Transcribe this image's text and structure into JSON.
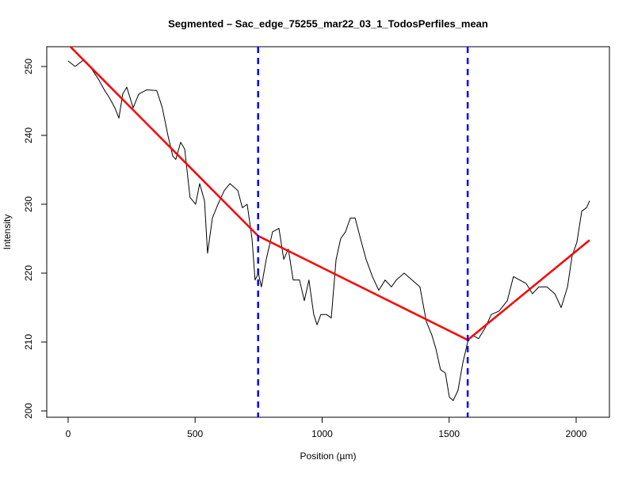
{
  "chart_data": {
    "type": "line",
    "title": "Segmented – Sac_edge_75255_mar22_03_1_TodosPerfiles_mean",
    "x_label": "Position (µm)",
    "y_label": "Intensity",
    "xlim": [
      -84,
      2131
    ],
    "ylim": [
      199.08,
      252.87
    ],
    "xticks": [
      0,
      500,
      1000,
      1500,
      2000
    ],
    "yticks": [
      200,
      210,
      220,
      230,
      240,
      250
    ],
    "series": [
      {
        "color": "#000000",
        "width": 1,
        "x": [
          0,
          28,
          59,
          90,
          122,
          144,
          162,
          184,
          200,
          215,
          231,
          256,
          278,
          309,
          349,
          371,
          393,
          412,
          424,
          443,
          459,
          480,
          502,
          518,
          537,
          549,
          568,
          590,
          615,
          637,
          668,
          686,
          705,
          724,
          736,
          749,
          761,
          780,
          805,
          830,
          849,
          867,
          886,
          911,
          930,
          948,
          967,
          980,
          995,
          1017,
          1036,
          1055,
          1073,
          1092,
          1111,
          1130,
          1151,
          1173,
          1198,
          1223,
          1248,
          1273,
          1292,
          1323,
          1354,
          1385,
          1410,
          1432,
          1448,
          1466,
          1485,
          1501,
          1516,
          1535,
          1554,
          1573,
          1591,
          1616,
          1641,
          1666,
          1697,
          1729,
          1753,
          1778,
          1803,
          1828,
          1853,
          1885,
          1916,
          1941,
          1966,
          1984,
          2003,
          2022,
          2041,
          2053
        ],
        "values": [
          250.8,
          250,
          250.9,
          249.8,
          248,
          246.5,
          245.5,
          244,
          242.5,
          246,
          247,
          244,
          246,
          246.6,
          246.5,
          244,
          240,
          237,
          236.5,
          239,
          238,
          231,
          230,
          233,
          230.5,
          222.9,
          228,
          230,
          232,
          233,
          232,
          229.5,
          230,
          225,
          219,
          220,
          218,
          222,
          226,
          226.5,
          222,
          223.5,
          219,
          219,
          216,
          219,
          214,
          212.5,
          214,
          214,
          213.5,
          222,
          225,
          226,
          228,
          228,
          225,
          222,
          219.5,
          217.5,
          219,
          218,
          219,
          220,
          219,
          218,
          213,
          211,
          209,
          206,
          205.5,
          202,
          201.5,
          203,
          207,
          210,
          211,
          210.5,
          212,
          214,
          214.5,
          216,
          219.5,
          219,
          218.5,
          217,
          218,
          218,
          217,
          215,
          218,
          222.5,
          224.5,
          229,
          229.5,
          230.5
        ]
      },
      {
        "color": "#ff0000",
        "width": 2.5,
        "x": [
          0,
          748,
          1573,
          2053
        ],
        "values": [
          253.2,
          225.4,
          210.3,
          224.8
        ]
      }
    ],
    "breakpoints": [
      748,
      1573
    ],
    "breakpoint_color": "#0000ff"
  }
}
